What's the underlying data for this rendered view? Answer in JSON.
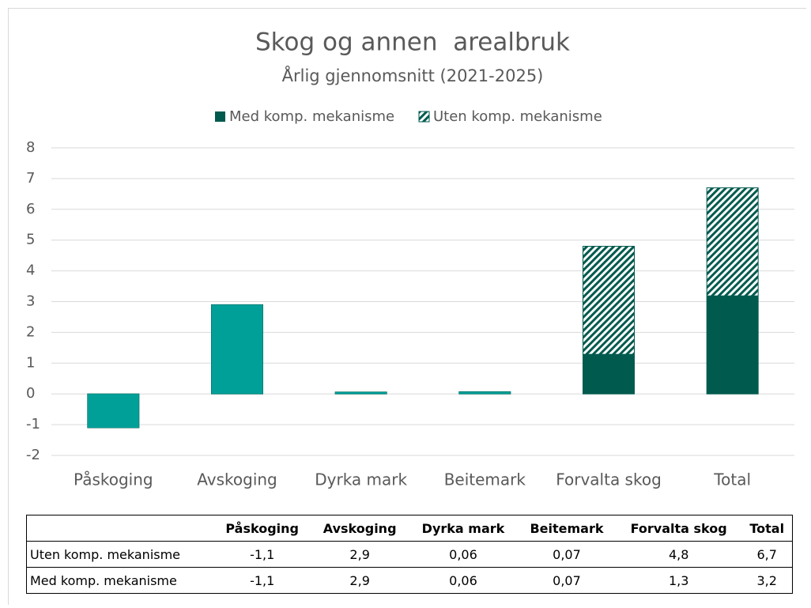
{
  "chart_data": {
    "type": "bar",
    "title": "Skog og annen  arealbruk",
    "subtitle": "Årlig gjennomsnitt (2021-2025)",
    "categories": [
      "Påskoging",
      "Avskoging",
      "Dyrka mark",
      "Beitemark",
      "Forvalta skog",
      "Total"
    ],
    "series": [
      {
        "name": "Med komp. mekanisme",
        "color": "#005a4e",
        "colors": [
          "#00a099",
          "#00a099",
          "#00a099",
          "#00a099",
          "#005a4e",
          "#005a4e"
        ],
        "values": [
          -1.1,
          2.9,
          0.06,
          0.07,
          1.3,
          3.2
        ],
        "value_labels": [
          "-1,1",
          "2,9",
          "0,06",
          "0,07",
          "1,3",
          "3,2"
        ]
      },
      {
        "name": "Uten komp. mekanisme",
        "color": "#005a4e",
        "hatch": true,
        "values": [
          -1.1,
          2.9,
          0.06,
          0.07,
          4.8,
          6.7
        ],
        "value_labels": [
          "-1,1",
          "2,9",
          "0,06",
          "0,07",
          "4,8",
          "6,7"
        ]
      }
    ],
    "ylim": [
      -2,
      8
    ],
    "yticks": [
      -2,
      -1,
      0,
      1,
      2,
      3,
      4,
      5,
      6,
      7,
      8
    ],
    "grid": true,
    "legend": "top"
  }
}
